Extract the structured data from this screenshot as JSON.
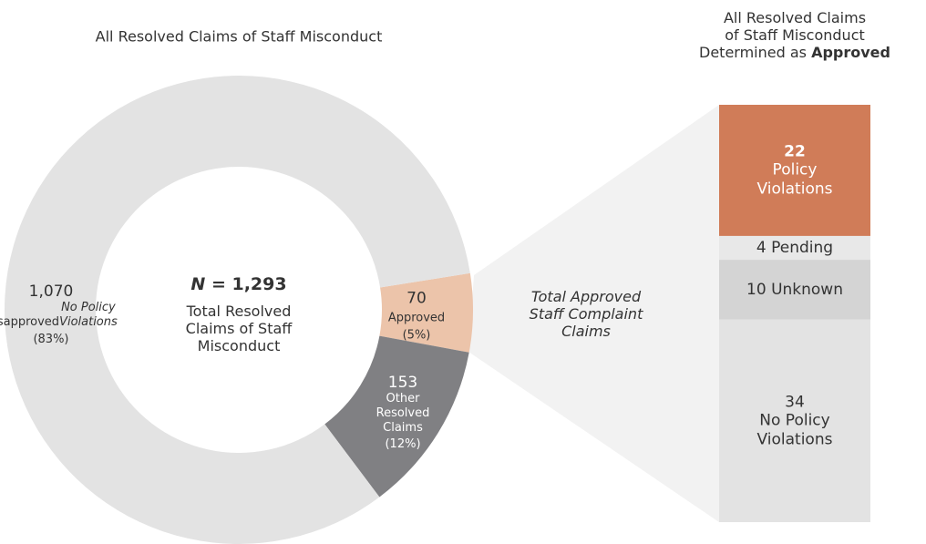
{
  "chart_data": [
    {
      "type": "donut",
      "title": "All Resolved Claims of Staff Misconduct",
      "categories": [
        "Approved",
        "Other Resolved Claims",
        "Disapproved"
      ],
      "category_notes": {
        "2": "No Policy Violations"
      },
      "values": [
        70,
        153,
        1070
      ],
      "value_labels": [
        "70",
        "153",
        "1,070"
      ],
      "percent_labels": [
        "(5%)",
        "(12%)",
        "(83%)"
      ],
      "colors": [
        "#ecc4aa",
        "#808083",
        "#e3e3e3"
      ],
      "start_angle": -9,
      "center_symbol": "N",
      "center_value": "= 1,293",
      "center_text": "Total Resolved Claims of Staff Misconduct"
    },
    {
      "type": "stacked-bar",
      "title_lines": [
        "All Resolved Claims",
        "of Staff Misconduct",
        "Determined as"
      ],
      "title_emphasis": "Approved",
      "annotation": [
        "Total Approved",
        "Staff Complaint",
        "Claims"
      ],
      "categories": [
        "Policy Violations",
        "Pending",
        "Unknown",
        "No Policy Violations"
      ],
      "values": [
        22,
        4,
        10,
        34
      ],
      "colors": [
        "#d07c58",
        "#e8e8e8",
        "#d4d4d4",
        "#e3e3e3"
      ]
    }
  ]
}
